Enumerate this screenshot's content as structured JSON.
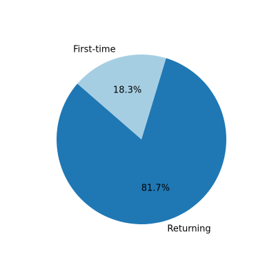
{
  "chart_data": {
    "type": "pie",
    "title": "",
    "slices": [
      {
        "label": "Returning",
        "value": 81.7,
        "pct_label": "81.7%",
        "color": "#1f78b4"
      },
      {
        "label": "First-time",
        "value": 18.3,
        "pct_label": "18.3%",
        "color": "#a6cee3"
      }
    ],
    "start_angle_deg": 139,
    "direction": "counterclockwise",
    "legend": "none"
  }
}
